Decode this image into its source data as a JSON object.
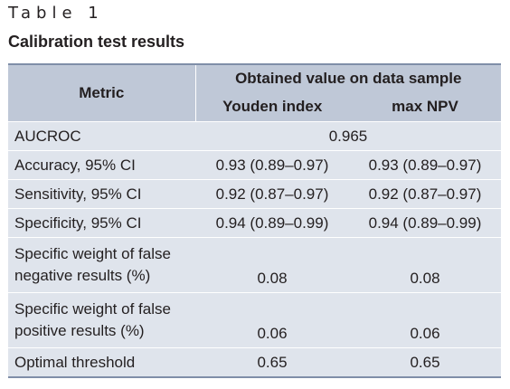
{
  "table_label": "Table 1",
  "caption": "Calibration test results",
  "header": {
    "metric": "Metric",
    "group": "Obtained value on data sample",
    "col1": "Youden index",
    "col2": "max NPV"
  },
  "rows": [
    {
      "metric": "AUCROC",
      "merged": "0.965"
    },
    {
      "metric": "Accuracy, 95% CI",
      "youden": "0.93 (0.89–0.97)",
      "npv": "0.93 (0.89–0.97)"
    },
    {
      "metric": "Sensitivity, 95% CI",
      "youden": "0.92 (0.87–0.97)",
      "npv": "0.92 (0.87–0.97)"
    },
    {
      "metric": "Specificity, 95% CI",
      "youden": "0.94 (0.89–0.99)",
      "npv": "0.94 (0.89–0.99)"
    },
    {
      "metric_line1": "Specific weight of false",
      "metric_line2": "negative results (%)",
      "youden": "0.08",
      "npv": "0.08"
    },
    {
      "metric_line1": "Specific weight of false",
      "metric_line2": "positive results (%)",
      "youden": "0.06",
      "npv": "0.06"
    },
    {
      "metric": "Optimal threshold",
      "youden": "0.65",
      "npv": "0.65"
    }
  ]
}
